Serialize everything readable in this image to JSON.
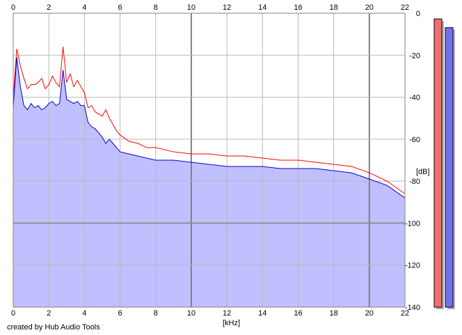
{
  "chart_data": {
    "type": "area",
    "xlabel": "[kHz]",
    "ylabel": "[dB]",
    "xlim": [
      0,
      22
    ],
    "ylim": [
      -140,
      0
    ],
    "x_ticks": [
      "0",
      "2",
      "4",
      "6",
      "8",
      "10",
      "12",
      "14",
      "16",
      "18",
      "20",
      "22"
    ],
    "y_ticks": [
      "0",
      "-20",
      "-40",
      "-60",
      "-80",
      "-100",
      "-120",
      "-140"
    ],
    "grid": true,
    "series": [
      {
        "color": "#ff0000",
        "x": [
          0,
          0.2,
          0.4,
          0.6,
          0.8,
          1.0,
          1.2,
          1.4,
          1.6,
          1.8,
          2.0,
          2.2,
          2.4,
          2.6,
          2.8,
          3.0,
          3.2,
          3.4,
          3.6,
          3.8,
          4.0,
          4.2,
          4.4,
          4.6,
          4.8,
          5.0,
          5.2,
          5.4,
          5.6,
          5.8,
          6.0,
          6.5,
          7.0,
          7.5,
          8.0,
          9.0,
          10.0,
          11.0,
          12.0,
          13.0,
          14.0,
          15.0,
          16.0,
          17.0,
          18.0,
          19.0,
          20.0,
          21.0,
          22.0
        ],
        "values": [
          -40,
          -17,
          -25,
          -31,
          -36,
          -34,
          -34,
          -33,
          -31,
          -36,
          -34,
          -30,
          -33,
          -35,
          -16,
          -33,
          -29,
          -35,
          -32,
          -35,
          -38,
          -45,
          -44,
          -47,
          -48,
          -49,
          -46,
          -50,
          -53,
          -56,
          -58,
          -61,
          -62,
          -64,
          -64,
          -66,
          -67,
          -67,
          -68,
          -68,
          -69,
          -70,
          -70,
          -71,
          -72,
          -73,
          -76,
          -80,
          -86
        ]
      },
      {
        "color": "#0000cc",
        "x": [
          0,
          0.2,
          0.4,
          0.6,
          0.8,
          1.0,
          1.2,
          1.4,
          1.6,
          1.8,
          2.0,
          2.2,
          2.4,
          2.6,
          2.8,
          3.0,
          3.2,
          3.4,
          3.6,
          3.8,
          4.0,
          4.2,
          4.4,
          4.6,
          4.8,
          5.0,
          5.2,
          5.4,
          5.6,
          5.8,
          6.0,
          6.5,
          7.0,
          7.5,
          8.0,
          9.0,
          10.0,
          11.0,
          12.0,
          13.0,
          14.0,
          15.0,
          16.0,
          17.0,
          18.0,
          19.0,
          20.0,
          21.0,
          22.0
        ],
        "values": [
          -45,
          -21,
          -35,
          -44,
          -46,
          -43,
          -45,
          -44,
          -46,
          -45,
          -43,
          -42,
          -44,
          -43,
          -27,
          -41,
          -42,
          -43,
          -42,
          -44,
          -44,
          -52,
          -54,
          -55,
          -57,
          -59,
          -62,
          -60,
          -62,
          -64,
          -66,
          -67,
          -68,
          -69,
          -70,
          -70,
          -71,
          -72,
          -73,
          -73,
          -73,
          -74,
          -74,
          -74,
          -75,
          -76,
          -79,
          -82,
          -88
        ]
      }
    ],
    "legend": "none"
  },
  "meters": [
    {
      "color": "#f07070",
      "level": 0.99
    },
    {
      "color": "#7070f0",
      "level": 0.96
    }
  ],
  "caption": "created by Hub Audio Tools"
}
